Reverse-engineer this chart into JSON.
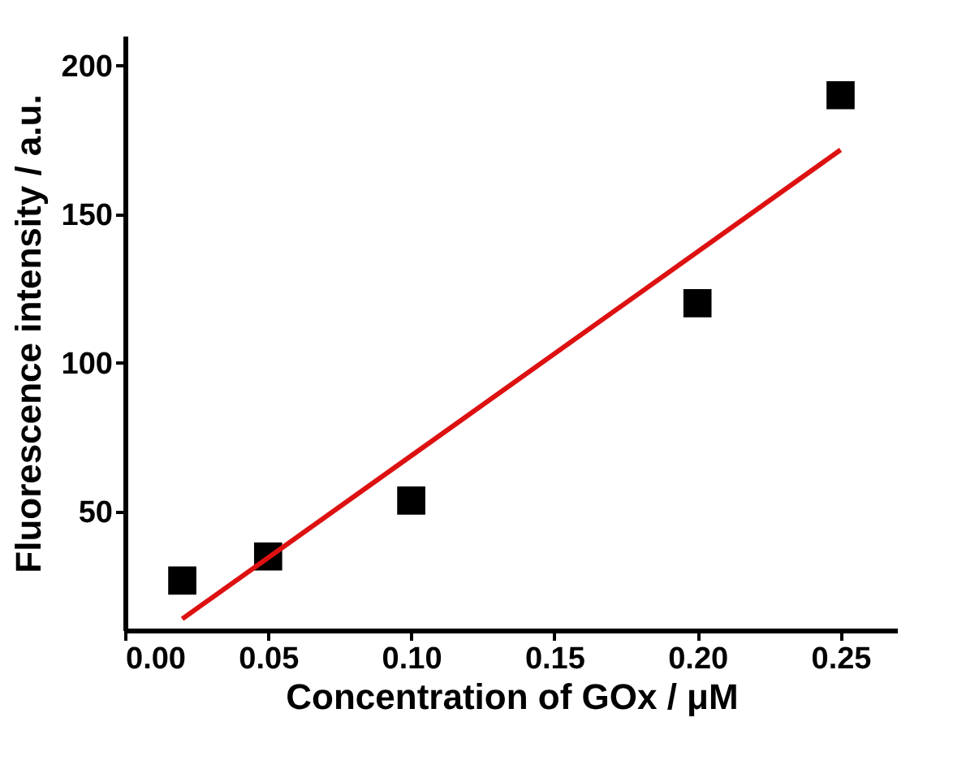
{
  "chart_data": {
    "type": "scatter",
    "xlabel": "Concentration of GOx / μM",
    "ylabel": "Fluorescence intensity / a.u.",
    "xlim": [
      0,
      0.27
    ],
    "xticks": [
      {
        "value": 0,
        "label": "0.00"
      },
      {
        "value": 0.05,
        "label": "0.05"
      },
      {
        "value": 0.1,
        "label": "0.10"
      },
      {
        "value": 0.15,
        "label": "0.15"
      },
      {
        "value": 0.2,
        "label": "0.20"
      },
      {
        "value": 0.25,
        "label": "0.25"
      }
    ],
    "ylim": [
      10,
      210
    ],
    "yticks": [
      50,
      100,
      150,
      200
    ],
    "grid": false,
    "series": [
      {
        "marker": "square",
        "color": "#000000",
        "x": [
          0.02,
          0.05,
          0.1,
          0.2,
          0.25
        ],
        "values": [
          26.7,
          34.8,
          53.6,
          120,
          190
        ]
      },
      {
        "type": "line",
        "color": "#dd1111",
        "x": [
          0.02,
          0.25
        ],
        "values": [
          13.8,
          171.6
        ]
      }
    ]
  }
}
